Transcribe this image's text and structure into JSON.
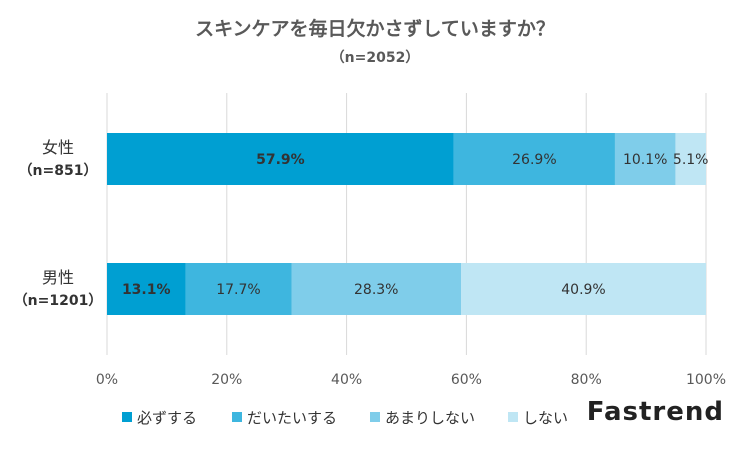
{
  "brand": "Fastrend",
  "chart_data": {
    "type": "bar",
    "orientation": "horizontal",
    "stacked": true,
    "title": "スキンケアを毎日欠かさずしていますか？",
    "subtitle": "（n=2052）",
    "categories": [
      {
        "name": "女性",
        "n": "（n=851）"
      },
      {
        "name": "男性",
        "n": "（n=1201）"
      }
    ],
    "series": [
      {
        "name": "必ずする",
        "color": "#009FD2",
        "values": [
          57.9,
          13.1
        ],
        "labels": [
          "57.9%",
          "13.1%"
        ]
      },
      {
        "name": "だいたいする",
        "color": "#3EB6DF",
        "values": [
          26.9,
          17.7
        ],
        "labels": [
          "26.9%",
          "17.7%"
        ]
      },
      {
        "name": "あまりしない",
        "color": "#7FCDEA",
        "values": [
          10.1,
          28.3
        ],
        "labels": [
          "10.1%",
          "28.3%"
        ]
      },
      {
        "name": "しない",
        "color": "#BFE6F4",
        "values": [
          5.1,
          40.9
        ],
        "labels": [
          "5.1%",
          "40.9%"
        ]
      }
    ],
    "xlim": [
      0,
      100
    ],
    "xticks": [
      "0%",
      "20%",
      "40%",
      "60%",
      "80%",
      "100%"
    ],
    "grid": true,
    "legend": "bottom",
    "bold_labels": [
      "57.9%",
      "13.1%"
    ]
  }
}
